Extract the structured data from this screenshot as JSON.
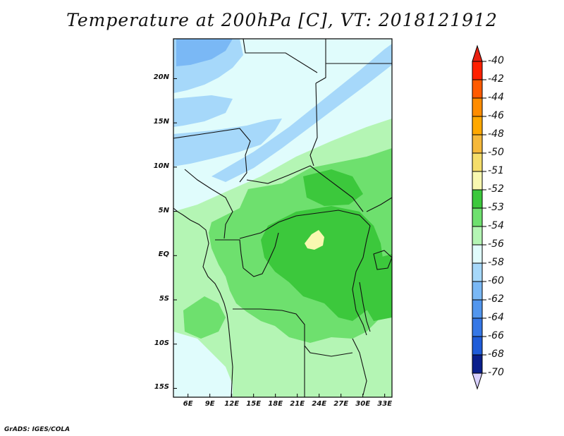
{
  "title": "Temperature at 200hPa [C], VT: 2018121912",
  "credit": "GrADS: IGES/COLA",
  "axes": {
    "lat_labels": [
      "20N",
      "15N",
      "10N",
      "5N",
      "EQ",
      "5S",
      "10S",
      "15S"
    ],
    "lat_values": [
      20,
      15,
      10,
      5,
      0,
      -5,
      -10,
      -15
    ],
    "lon_labels": [
      "6E",
      "9E",
      "12E",
      "15E",
      "18E",
      "21E",
      "24E",
      "27E",
      "30E",
      "33E"
    ],
    "lon_values": [
      6,
      9,
      12,
      15,
      18,
      21,
      24,
      27,
      30,
      33
    ],
    "lat_range": [
      -16,
      24.5
    ],
    "lon_range": [
      4,
      34
    ]
  },
  "colorbar": {
    "labels": [
      "-40",
      "-42",
      "-44",
      "-46",
      "-48",
      "-50",
      "-51",
      "-52",
      "-53",
      "-54",
      "-56",
      "-58",
      "-60",
      "-62",
      "-64",
      "-66",
      "-68",
      "-70"
    ],
    "colors": [
      "#ff2000",
      "#ff5a00",
      "#ff8c00",
      "#ffa800",
      "#f5b83a",
      "#f5dd6a",
      "#f8f8b0",
      "#3cc83c",
      "#6ee06e",
      "#b4f5b4",
      "#e0fcfc",
      "#a6d8fa",
      "#7ab8f5",
      "#5296ee",
      "#3577e6",
      "#1f5cd9",
      "#0d3fbf",
      "#0a1f8c"
    ],
    "top_arrow_color": "#e82010",
    "bottom_arrow_color": "#d8d0ff"
  },
  "field_colors": {
    "t_m51": "#f8f8b0",
    "t_m52": "#3cc83c",
    "t_m53": "#6ee06e",
    "t_m54": "#b4f5b4",
    "t_m56": "#e0fcfc",
    "t_m58": "#a6d8fa",
    "t_m60": "#7ab8f5"
  }
}
